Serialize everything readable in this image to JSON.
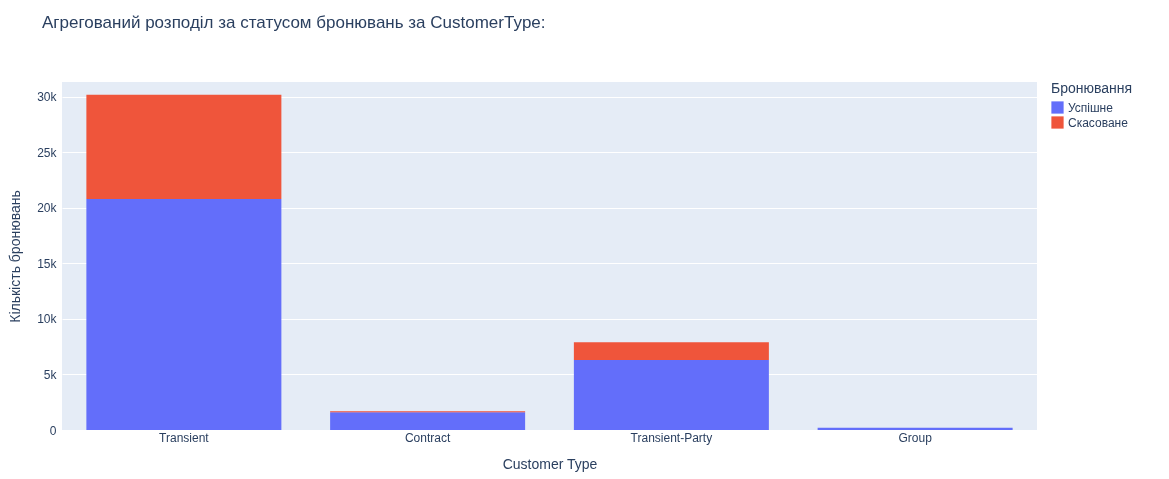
{
  "chart_data": {
    "type": "bar",
    "title": "Агрегований розподіл за статусом бронювань за CustomerType:",
    "xlabel": "Customer Type",
    "ylabel": "Кількість бронювань",
    "legend_title": "Бронювання",
    "categories": [
      "Transient",
      "Contract",
      "Transient-Party",
      "Group"
    ],
    "series": [
      {
        "name": "Успішне",
        "color": "#636efa",
        "values": [
          20800,
          1600,
          6300,
          200
        ]
      },
      {
        "name": "Скасоване",
        "color": "#ef553b",
        "values": [
          9400,
          100,
          1600,
          null
        ]
      }
    ],
    "stacked": true,
    "ylim": [
      0,
      31350
    ],
    "yticks": [
      {
        "value": 0,
        "label": "0"
      },
      {
        "value": 5000,
        "label": "5k"
      },
      {
        "value": 10000,
        "label": "10k"
      },
      {
        "value": 15000,
        "label": "15k"
      },
      {
        "value": 20000,
        "label": "20k"
      },
      {
        "value": 25000,
        "label": "25k"
      },
      {
        "value": 30000,
        "label": "30k"
      }
    ],
    "grid": "y",
    "legend": "top right"
  }
}
